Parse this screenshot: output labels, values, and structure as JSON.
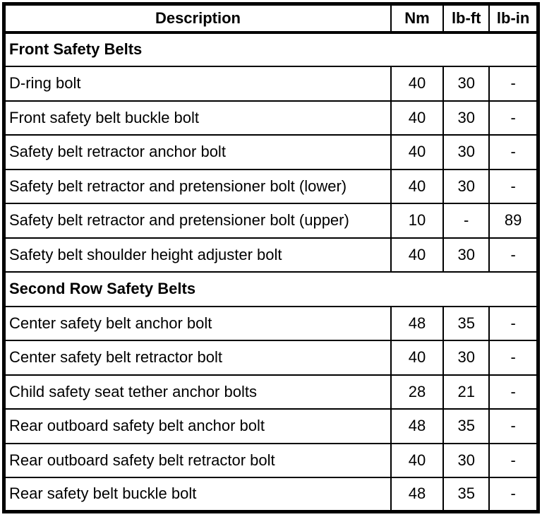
{
  "colors": {
    "border": "#000000",
    "background": "#ffffff",
    "text": "#000000"
  },
  "table": {
    "headers": [
      "Description",
      "Nm",
      "lb-ft",
      "lb-in"
    ],
    "sections": [
      {
        "title": "Front Safety Belts",
        "rows": [
          {
            "description": "D-ring bolt",
            "nm": "40",
            "lb_ft": "30",
            "lb_in": "-"
          },
          {
            "description": "Front safety belt buckle bolt",
            "nm": "40",
            "lb_ft": "30",
            "lb_in": "-"
          },
          {
            "description": "Safety belt retractor anchor bolt",
            "nm": "40",
            "lb_ft": "30",
            "lb_in": "-"
          },
          {
            "description": "Safety belt retractor and pretensioner bolt (lower)",
            "nm": "40",
            "lb_ft": "30",
            "lb_in": "-"
          },
          {
            "description": "Safety belt retractor and pretensioner bolt (upper)",
            "nm": "10",
            "lb_ft": "-",
            "lb_in": "89"
          },
          {
            "description": "Safety belt shoulder height adjuster bolt",
            "nm": "40",
            "lb_ft": "30",
            "lb_in": "-"
          }
        ]
      },
      {
        "title": "Second Row Safety Belts",
        "rows": [
          {
            "description": "Center safety belt anchor bolt",
            "nm": "48",
            "lb_ft": "35",
            "lb_in": "-"
          },
          {
            "description": "Center safety belt retractor bolt",
            "nm": "40",
            "lb_ft": "30",
            "lb_in": "-"
          },
          {
            "description": "Child safety seat tether anchor bolts",
            "nm": "28",
            "lb_ft": "21",
            "lb_in": "-"
          },
          {
            "description": "Rear outboard safety belt anchor bolt",
            "nm": "48",
            "lb_ft": "35",
            "lb_in": "-"
          },
          {
            "description": "Rear outboard safety belt retractor bolt",
            "nm": "40",
            "lb_ft": "30",
            "lb_in": "-"
          },
          {
            "description": "Rear safety belt buckle bolt",
            "nm": "48",
            "lb_ft": "35",
            "lb_in": "-"
          }
        ]
      }
    ]
  }
}
